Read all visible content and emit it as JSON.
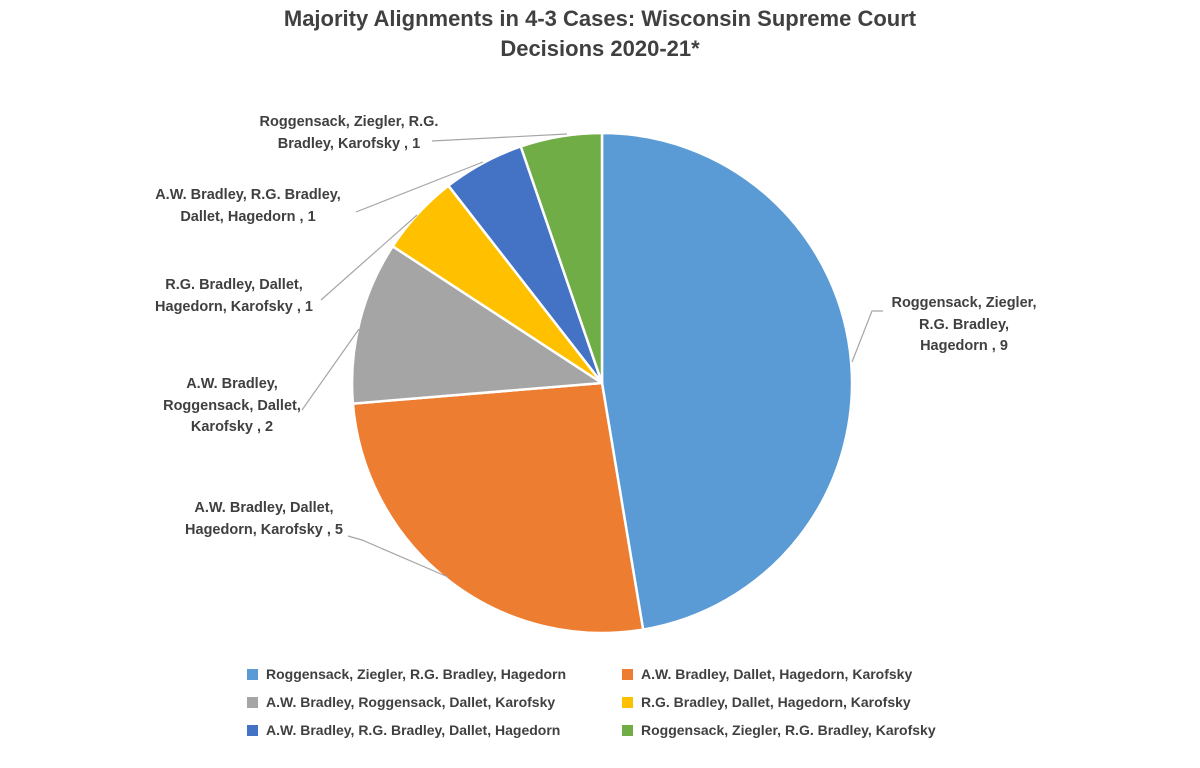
{
  "title": {
    "text": "Majority Alignments in 4-3 Cases: Wisconsin Supreme Court Decisions 2020-21*",
    "lines": [
      "Majority Alignments in 4-3 Cases: Wisconsin Supreme Court",
      "Decisions 2020-21*"
    ]
  },
  "colors": {
    "text": "#404040",
    "leader_line": "#A6A6A6",
    "slice_border": "#FFFFFF",
    "background": "#FFFFFF"
  },
  "chart_data": {
    "type": "pie",
    "title": "Majority Alignments in 4-3 Cases: Wisconsin Supreme Court Decisions 2020-21*",
    "total": 19,
    "start_angle_deg": 0,
    "direction": "clockwise",
    "slices": [
      {
        "label": "Roggensack, Ziegler, R.G. Bradley, Hagedorn",
        "value": 9,
        "color": "#5B9BD5",
        "callout_lines": [
          "Roggensack, Ziegler,",
          "R.G. Bradley,",
          "Hagedorn , 9"
        ]
      },
      {
        "label": "A.W. Bradley, Dallet, Hagedorn, Karofsky",
        "value": 5,
        "color": "#ED7D31",
        "callout_lines": [
          "A.W. Bradley, Dallet,",
          "Hagedorn, Karofsky , 5"
        ]
      },
      {
        "label": "A.W. Bradley, Roggensack, Dallet, Karofsky",
        "value": 2,
        "color": "#A5A5A5",
        "callout_lines": [
          "A.W. Bradley,",
          "Roggensack, Dallet,",
          "Karofsky , 2"
        ]
      },
      {
        "label": "R.G. Bradley, Dallet, Hagedorn, Karofsky",
        "value": 1,
        "color": "#FFC000",
        "callout_lines": [
          "R.G. Bradley, Dallet,",
          "Hagedorn, Karofsky , 1"
        ]
      },
      {
        "label": "A.W. Bradley, R.G. Bradley, Dallet, Hagedorn",
        "value": 1,
        "color": "#4472C4",
        "callout_lines": [
          "A.W. Bradley, R.G. Bradley,",
          "Dallet, Hagedorn , 1"
        ]
      },
      {
        "label": "Roggensack, Ziegler, R.G. Bradley, Karofsky",
        "value": 1,
        "color": "#70AD47",
        "callout_lines": [
          "Roggensack, Ziegler, R.G.",
          "Bradley, Karofsky , 1"
        ]
      }
    ],
    "legend": {
      "position": "bottom",
      "columns": 2,
      "entries": [
        {
          "label": "Roggensack, Ziegler, R.G. Bradley, Hagedorn",
          "color": "#5B9BD5"
        },
        {
          "label": "A.W. Bradley, Dallet, Hagedorn, Karofsky",
          "color": "#ED7D31"
        },
        {
          "label": "A.W. Bradley, Roggensack, Dallet, Karofsky",
          "color": "#A5A5A5"
        },
        {
          "label": "R.G. Bradley, Dallet, Hagedorn, Karofsky",
          "color": "#FFC000"
        },
        {
          "label": "A.W. Bradley, R.G. Bradley, Dallet, Hagedorn",
          "color": "#4472C4"
        },
        {
          "label": "Roggensack, Ziegler, R.G. Bradley, Karofsky",
          "color": "#70AD47"
        }
      ]
    }
  }
}
